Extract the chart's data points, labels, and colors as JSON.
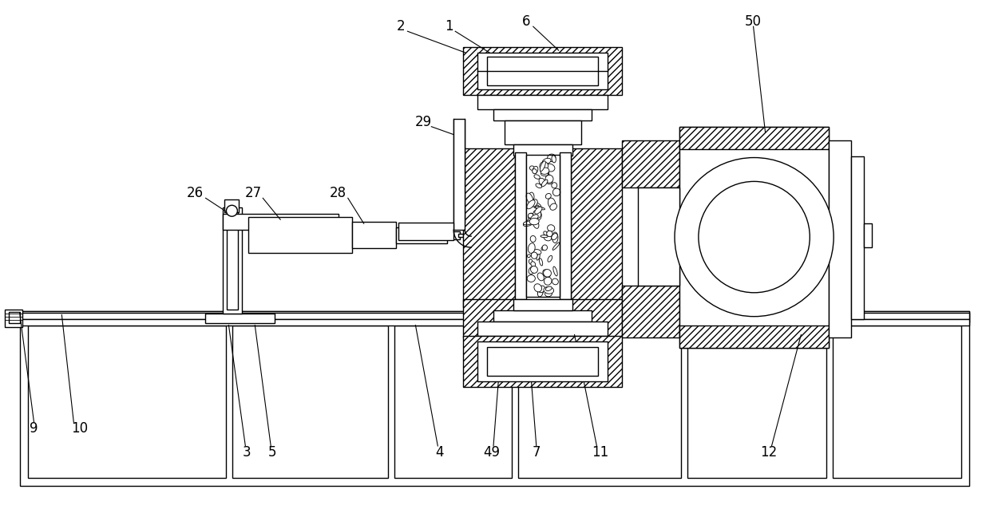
{
  "bg_color": "#ffffff",
  "line_color": "#000000",
  "fig_width": 12.4,
  "fig_height": 6.43,
  "lw": 1.0
}
